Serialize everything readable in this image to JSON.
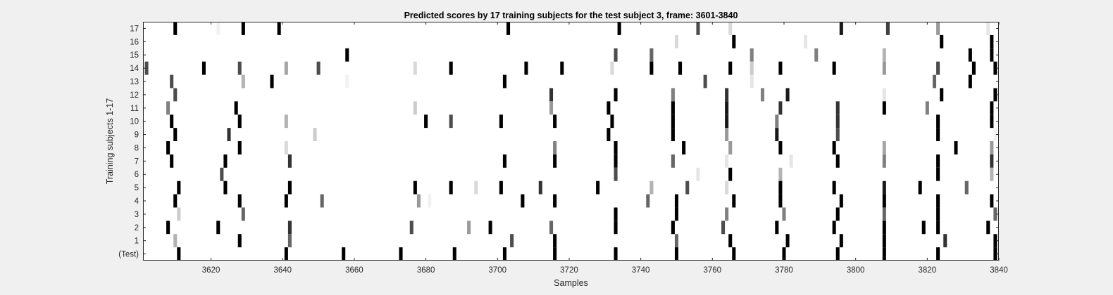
{
  "chart_data": {
    "type": "heatmap",
    "title": "Predicted scores by 17 training subjects for the test subject 3, frame: 3601-3840",
    "xlabel": "Samples",
    "ylabel": "Training subjects 1-17",
    "xlim": [
      3601,
      3840
    ],
    "x_ticks": [
      3620,
      3640,
      3660,
      3680,
      3700,
      3720,
      3740,
      3760,
      3780,
      3800,
      3820,
      3840
    ],
    "y_tick_labels": [
      "(Test)",
      "1",
      "2",
      "3",
      "4",
      "5",
      "6",
      "7",
      "8",
      "9",
      "10",
      "11",
      "12",
      "13",
      "14",
      "15",
      "16",
      "17"
    ],
    "colormap": "gray (1 = black, 0 = white)",
    "rows": [
      {
        "label": "17",
        "events": [
          [
            3610,
            1
          ],
          [
            3622,
            0.05
          ],
          [
            3629,
            1
          ],
          [
            3639,
            1
          ],
          [
            3703,
            1
          ],
          [
            3734,
            1
          ],
          [
            3756,
            0.7
          ],
          [
            3765,
            0.15
          ],
          [
            3796,
            0.9
          ],
          [
            3809,
            0.75
          ],
          [
            3823,
            0.4
          ],
          [
            3837,
            0.1
          ]
        ]
      },
      {
        "label": "16",
        "events": [
          [
            3750,
            0.15
          ],
          [
            3766,
            1
          ],
          [
            3786,
            0.1
          ],
          [
            3824,
            1
          ],
          [
            3838,
            1
          ]
        ]
      },
      {
        "label": "15",
        "events": [
          [
            3658,
            1
          ],
          [
            3733,
            0.7
          ],
          [
            3743,
            0.6
          ],
          [
            3771,
            0.5
          ],
          [
            3789,
            0.5
          ],
          [
            3808,
            0.3
          ],
          [
            3832,
            1
          ],
          [
            3838,
            1
          ]
        ]
      },
      {
        "label": "14",
        "events": [
          [
            3602,
            0.7
          ],
          [
            3618,
            1
          ],
          [
            3628,
            0.7
          ],
          [
            3641,
            0.35
          ],
          [
            3650,
            0.7
          ],
          [
            3677,
            0.15
          ],
          [
            3687,
            1
          ],
          [
            3708,
            1
          ],
          [
            3718,
            1
          ],
          [
            3732,
            0.15
          ],
          [
            3743,
            1
          ],
          [
            3751,
            1
          ],
          [
            3765,
            1
          ],
          [
            3771,
            0.2
          ],
          [
            3779,
            1
          ],
          [
            3794,
            1
          ],
          [
            3808,
            0.4
          ],
          [
            3823,
            0.7
          ],
          [
            3833,
            1
          ],
          [
            3839,
            1
          ]
        ]
      },
      {
        "label": "13",
        "events": [
          [
            3609,
            0.7
          ],
          [
            3629,
            0.3
          ],
          [
            3637,
            1
          ],
          [
            3658,
            0.05
          ],
          [
            3702,
            1
          ],
          [
            3758,
            0.7
          ],
          [
            3771,
            0.1
          ],
          [
            3822,
            0.6
          ],
          [
            3832,
            1
          ]
        ]
      },
      {
        "label": "12",
        "events": [
          [
            3610,
            0.7
          ],
          [
            3715,
            0.8
          ],
          [
            3733,
            1
          ],
          [
            3749,
            0.5
          ],
          [
            3764,
            0.8
          ],
          [
            3774,
            0.5
          ],
          [
            3781,
            0.9
          ],
          [
            3808,
            0.1
          ],
          [
            3824,
            1
          ],
          [
            3839,
            1
          ]
        ]
      },
      {
        "label": "11",
        "events": [
          [
            3608,
            0.5
          ],
          [
            3627,
            1
          ],
          [
            3677,
            0.2
          ],
          [
            3715,
            0.4
          ],
          [
            3731,
            1
          ],
          [
            3749,
            1
          ],
          [
            3764,
            0.9
          ],
          [
            3779,
            0.8
          ],
          [
            3795,
            0.8
          ],
          [
            3808,
            1
          ],
          [
            3820,
            0.5
          ],
          [
            3838,
            1
          ]
        ]
      },
      {
        "label": "10",
        "events": [
          [
            3609,
            1
          ],
          [
            3628,
            1
          ],
          [
            3641,
            0.3
          ],
          [
            3680,
            1
          ],
          [
            3687,
            0.7
          ],
          [
            3701,
            1
          ],
          [
            3716,
            1
          ],
          [
            3732,
            1
          ],
          [
            3749,
            1
          ],
          [
            3764,
            0.9
          ],
          [
            3778,
            0.5
          ],
          [
            3795,
            0.8
          ],
          [
            3823,
            1
          ],
          [
            3838,
            1
          ]
        ]
      },
      {
        "label": "9",
        "events": [
          [
            3610,
            1
          ],
          [
            3625,
            0.8
          ],
          [
            3649,
            0.2
          ],
          [
            3731,
            1
          ],
          [
            3749,
            1
          ],
          [
            3764,
            0.4
          ],
          [
            3778,
            0.9
          ],
          [
            3795,
            0.7
          ],
          [
            3823,
            1
          ],
          [
            3839,
            0.05
          ]
        ]
      },
      {
        "label": "8",
        "events": [
          [
            3608,
            1
          ],
          [
            3628,
            1
          ],
          [
            3641,
            0.15
          ],
          [
            3716,
            0.5
          ],
          [
            3733,
            1
          ],
          [
            3752,
            1
          ],
          [
            3765,
            0.4
          ],
          [
            3779,
            1
          ],
          [
            3794,
            1
          ],
          [
            3808,
            0.35
          ],
          [
            3828,
            1
          ],
          [
            3838,
            0.4
          ]
        ]
      },
      {
        "label": "7",
        "events": [
          [
            3609,
            1
          ],
          [
            3624,
            1
          ],
          [
            3642,
            0.8
          ],
          [
            3702,
            1
          ],
          [
            3716,
            1
          ],
          [
            3733,
            1
          ],
          [
            3749,
            0.6
          ],
          [
            3764,
            0.1
          ],
          [
            3782,
            0.1
          ],
          [
            3795,
            1
          ],
          [
            3808,
            0.5
          ],
          [
            3823,
            1
          ],
          [
            3838,
            0.8
          ]
        ]
      },
      {
        "label": "6",
        "events": [
          [
            3623,
            0.7
          ],
          [
            3733,
            0.7
          ],
          [
            3756,
            0.1
          ],
          [
            3765,
            1
          ],
          [
            3779,
            0.3
          ],
          [
            3823,
            1
          ],
          [
            3838,
            0.3
          ]
        ]
      },
      {
        "label": "5",
        "events": [
          [
            3611,
            1
          ],
          [
            3624,
            1
          ],
          [
            3642,
            1
          ],
          [
            3677,
            1
          ],
          [
            3687,
            1
          ],
          [
            3694,
            0.15
          ],
          [
            3701,
            1
          ],
          [
            3712,
            0.8
          ],
          [
            3728,
            1
          ],
          [
            3743,
            0.3
          ],
          [
            3753,
            0.7
          ],
          [
            3764,
            0.15
          ],
          [
            3779,
            1
          ],
          [
            3794,
            1
          ],
          [
            3808,
            0.9
          ],
          [
            3818,
            1
          ],
          [
            3831,
            0.6
          ]
        ]
      },
      {
        "label": "4",
        "events": [
          [
            3610,
            1
          ],
          [
            3628,
            1
          ],
          [
            3641,
            1
          ],
          [
            3651,
            0.6
          ],
          [
            3678,
            0.4
          ],
          [
            3681,
            0.05
          ],
          [
            3707,
            1
          ],
          [
            3716,
            1
          ],
          [
            3742,
            0.6
          ],
          [
            3750,
            1
          ],
          [
            3766,
            1
          ],
          [
            3779,
            1
          ],
          [
            3796,
            1
          ],
          [
            3808,
            1
          ],
          [
            3823,
            1
          ],
          [
            3838,
            1
          ]
        ]
      },
      {
        "label": "3",
        "events": [
          [
            3611,
            0.2
          ],
          [
            3629,
            0.6
          ],
          [
            3733,
            1
          ],
          [
            3750,
            1
          ],
          [
            3764,
            0.5
          ],
          [
            3780,
            0.5
          ],
          [
            3795,
            1
          ],
          [
            3808,
            0.6
          ],
          [
            3823,
            1
          ],
          [
            3839,
            0.6
          ]
        ]
      },
      {
        "label": "2",
        "events": [
          [
            3608,
            1
          ],
          [
            3622,
            1
          ],
          [
            3642,
            0.8
          ],
          [
            3676,
            0.7
          ],
          [
            3692,
            0.4
          ],
          [
            3698,
            1
          ],
          [
            3715,
            0.6
          ],
          [
            3733,
            1
          ],
          [
            3749,
            1
          ],
          [
            3763,
            0.7
          ],
          [
            3778,
            1
          ],
          [
            3794,
            1
          ],
          [
            3808,
            1
          ],
          [
            3819,
            1
          ],
          [
            3823,
            1
          ],
          [
            3837,
            1
          ]
        ]
      },
      {
        "label": "1",
        "events": [
          [
            3610,
            0.3
          ],
          [
            3628,
            1
          ],
          [
            3642,
            0.6
          ],
          [
            3704,
            0.7
          ],
          [
            3716,
            1
          ],
          [
            3750,
            0.6
          ],
          [
            3765,
            1
          ],
          [
            3781,
            1
          ],
          [
            3796,
            1
          ],
          [
            3808,
            1
          ],
          [
            3825,
            0.8
          ],
          [
            3839,
            1
          ]
        ]
      },
      {
        "label": "(Test)",
        "events": [
          [
            3611,
            1
          ],
          [
            3641,
            1
          ],
          [
            3657,
            1
          ],
          [
            3673,
            1
          ],
          [
            3688,
            1
          ],
          [
            3702,
            1
          ],
          [
            3716,
            1
          ],
          [
            3733,
            1
          ],
          [
            3750,
            1
          ],
          [
            3766,
            1
          ],
          [
            3780,
            1
          ],
          [
            3795,
            1
          ],
          [
            3808,
            1
          ],
          [
            3823,
            1
          ],
          [
            3839,
            1
          ]
        ]
      }
    ]
  }
}
